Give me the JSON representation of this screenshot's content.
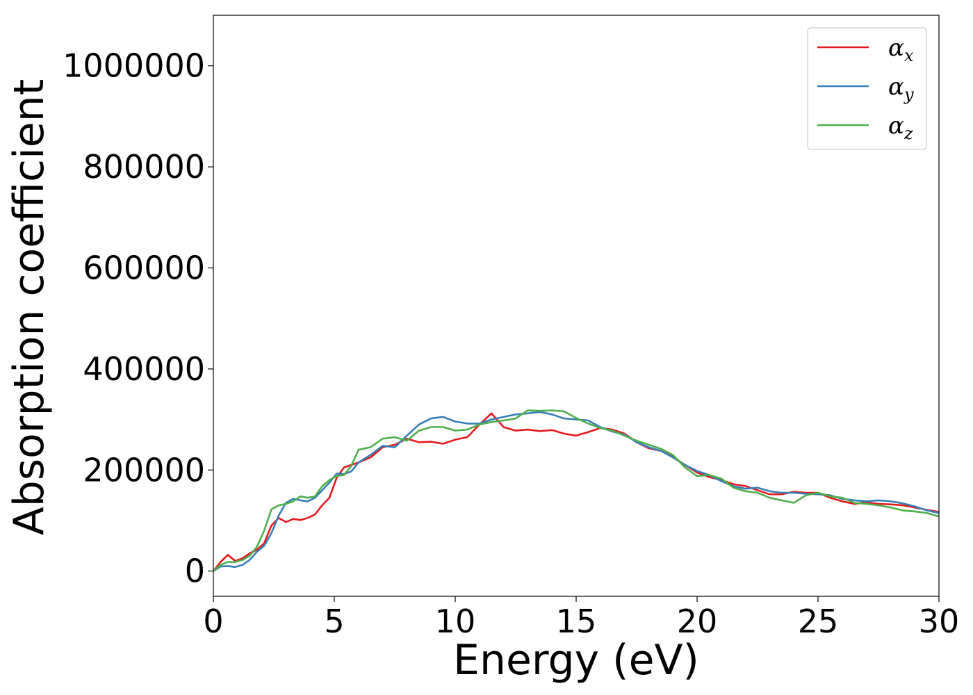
{
  "chart_data": {
    "type": "line",
    "title": "",
    "xlabel": "Energy (eV)",
    "ylabel": "Absorption coefficient",
    "xlim": [
      0,
      30
    ],
    "ylim": [
      -50000,
      1100000
    ],
    "xticks": [
      0,
      5,
      10,
      15,
      20,
      25,
      30
    ],
    "yticks": [
      0,
      200000,
      400000,
      600000,
      800000,
      1000000
    ],
    "grid": false,
    "legend_position": "top-right",
    "series": [
      {
        "name": "αx",
        "symbol": "α",
        "subscript": "x",
        "color": "#e41a1c",
        "x": [
          0,
          0.3,
          0.6,
          0.9,
          1.2,
          1.5,
          1.8,
          2.1,
          2.4,
          2.7,
          3.0,
          3.3,
          3.6,
          3.9,
          4.2,
          4.5,
          4.8,
          5.1,
          5.4,
          5.7,
          6.0,
          6.5,
          7.0,
          7.5,
          8.0,
          8.5,
          9.0,
          9.5,
          10.0,
          10.5,
          11.0,
          11.5,
          12.0,
          12.5,
          13.0,
          13.5,
          14.0,
          14.5,
          15.0,
          15.5,
          16.0,
          16.5,
          17.0,
          17.5,
          18.0,
          18.5,
          19.0,
          19.5,
          20.0,
          20.5,
          21.0,
          21.5,
          22.0,
          22.5,
          23.0,
          23.5,
          24.0,
          24.5,
          25.0,
          25.5,
          26.0,
          26.5,
          27.0,
          27.5,
          28.0,
          28.5,
          29.0,
          29.5,
          30.0
        ],
        "y": [
          0,
          18000,
          32000,
          20000,
          25000,
          35000,
          42000,
          55000,
          90000,
          105000,
          97000,
          103000,
          101000,
          105000,
          112000,
          130000,
          145000,
          185000,
          205000,
          210000,
          215000,
          225000,
          245000,
          250000,
          262000,
          255000,
          256000,
          252000,
          260000,
          265000,
          290000,
          312000,
          285000,
          278000,
          280000,
          277000,
          279000,
          272000,
          268000,
          275000,
          283000,
          280000,
          272000,
          255000,
          243000,
          238000,
          226000,
          210000,
          195000,
          186000,
          180000,
          172000,
          168000,
          160000,
          152000,
          152000,
          157000,
          155000,
          155000,
          145000,
          138000,
          133000,
          136000,
          133000,
          132000,
          130000,
          126000,
          121000,
          117000
        ]
      },
      {
        "name": "αy",
        "symbol": "α",
        "subscript": "y",
        "color": "#377eb8",
        "x": [
          0,
          0.3,
          0.6,
          0.9,
          1.2,
          1.5,
          1.8,
          2.1,
          2.4,
          2.7,
          3.0,
          3.3,
          3.6,
          3.9,
          4.2,
          4.5,
          4.8,
          5.1,
          5.4,
          5.7,
          6.0,
          6.5,
          7.0,
          7.5,
          8.0,
          8.5,
          9.0,
          9.5,
          10.0,
          10.5,
          11.0,
          11.5,
          12.0,
          12.5,
          13.0,
          13.5,
          14.0,
          14.5,
          15.0,
          15.5,
          16.0,
          16.5,
          17.0,
          17.5,
          18.0,
          18.5,
          19.0,
          19.5,
          20.0,
          20.5,
          21.0,
          21.5,
          22.0,
          22.5,
          23.0,
          23.5,
          24.0,
          24.5,
          25.0,
          25.5,
          26.0,
          26.5,
          27.0,
          27.5,
          28.0,
          28.5,
          29.0,
          29.5,
          30.0
        ],
        "y": [
          0,
          9000,
          10000,
          8000,
          12000,
          22000,
          38000,
          50000,
          75000,
          110000,
          135000,
          143000,
          140000,
          138000,
          145000,
          160000,
          175000,
          193000,
          192000,
          197000,
          215000,
          230000,
          248000,
          245000,
          268000,
          290000,
          302000,
          305000,
          296000,
          292000,
          292000,
          300000,
          305000,
          310000,
          312000,
          315000,
          310000,
          302000,
          300000,
          298000,
          285000,
          276000,
          270000,
          255000,
          245000,
          238000,
          225000,
          210000,
          198000,
          190000,
          178000,
          168000,
          163000,
          165000,
          158000,
          155000,
          155000,
          153000,
          152000,
          150000,
          143000,
          140000,
          138000,
          140000,
          138000,
          134000,
          128000,
          120000,
          115000
        ]
      },
      {
        "name": "αz",
        "symbol": "α",
        "subscript": "z",
        "color": "#4daf4a",
        "x": [
          0,
          0.3,
          0.6,
          0.9,
          1.2,
          1.5,
          1.8,
          2.1,
          2.4,
          2.7,
          3.0,
          3.3,
          3.6,
          3.9,
          4.2,
          4.5,
          4.8,
          5.1,
          5.4,
          5.7,
          6.0,
          6.5,
          7.0,
          7.5,
          8.0,
          8.5,
          9.0,
          9.5,
          10.0,
          10.5,
          11.0,
          11.5,
          12.0,
          12.5,
          13.0,
          13.5,
          14.0,
          14.5,
          15.0,
          15.5,
          16.0,
          16.5,
          17.0,
          17.5,
          18.0,
          18.5,
          19.0,
          19.5,
          20.0,
          20.5,
          21.0,
          21.5,
          22.0,
          22.5,
          23.0,
          23.5,
          24.0,
          24.5,
          25.0,
          25.5,
          26.0,
          26.5,
          27.0,
          27.5,
          28.0,
          28.5,
          29.0,
          29.5,
          30.0
        ],
        "y": [
          0,
          12000,
          18000,
          18000,
          22000,
          30000,
          48000,
          80000,
          122000,
          130000,
          133000,
          138000,
          148000,
          145000,
          148000,
          168000,
          180000,
          188000,
          190000,
          208000,
          240000,
          245000,
          262000,
          265000,
          258000,
          278000,
          285000,
          285000,
          278000,
          280000,
          290000,
          295000,
          298000,
          302000,
          318000,
          317000,
          318000,
          316000,
          303000,
          292000,
          283000,
          278000,
          268000,
          258000,
          250000,
          242000,
          230000,
          205000,
          188000,
          190000,
          183000,
          165000,
          158000,
          155000,
          145000,
          140000,
          135000,
          150000,
          155000,
          148000,
          145000,
          135000,
          133000,
          130000,
          126000,
          120000,
          118000,
          115000,
          108000
        ]
      }
    ]
  }
}
